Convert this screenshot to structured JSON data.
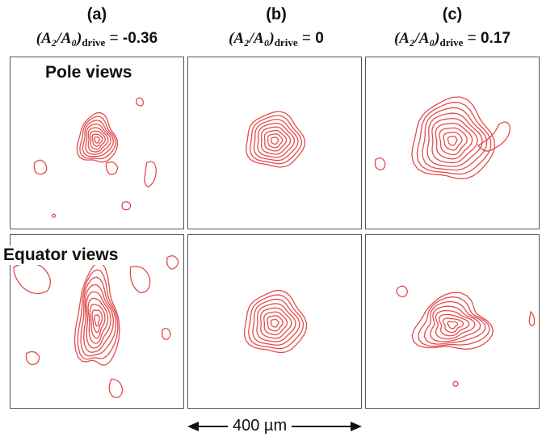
{
  "columns": [
    {
      "letter": "(a)",
      "value": "-0.36"
    },
    {
      "letter": "(b)",
      "value": "0"
    },
    {
      "letter": "(c)",
      "value": "0.17"
    }
  ],
  "condition_label": {
    "lhs": "(A₂/A₀)",
    "subscript": "drive",
    "equals": " = "
  },
  "row_labels": {
    "pole": "Pole views",
    "equator": "Equator views"
  },
  "scale_bar": {
    "label": "400 µm"
  },
  "colors": {
    "contour": "#e34a4a",
    "frame": "#555555"
  }
}
